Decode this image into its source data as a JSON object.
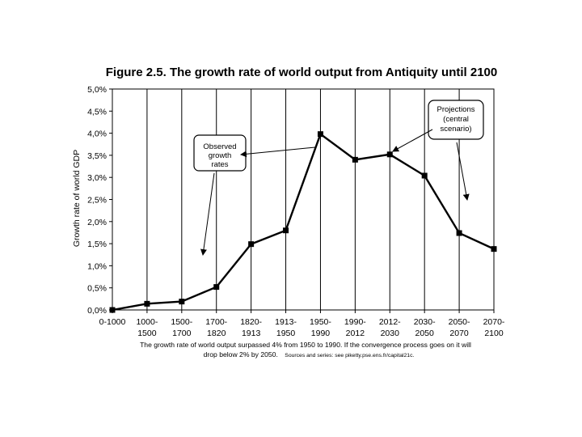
{
  "chart_data": {
    "type": "line",
    "title": "Figure 2.5. The growth rate of world output from Antiquity until 2100",
    "xlabel": "",
    "ylabel": "Growth rate of world GDP",
    "ylim": [
      0,
      5
    ],
    "y_ticks": [
      "0,0%",
      "0,5%",
      "1,0%",
      "1,5%",
      "2,0%",
      "2,5%",
      "3,0%",
      "3,5%",
      "4,0%",
      "4,5%",
      "5,0%"
    ],
    "categories": [
      [
        "0-1000"
      ],
      [
        "1000-",
        "1500"
      ],
      [
        "1500-",
        "1700"
      ],
      [
        "1700-",
        "1820"
      ],
      [
        "1820-",
        "1913"
      ],
      [
        "1913-",
        "1950"
      ],
      [
        "1950-",
        "1990"
      ],
      [
        "1990-",
        "2012"
      ],
      [
        "2012-",
        "2030"
      ],
      [
        "2030-",
        "2050"
      ],
      [
        "2050-",
        "2070"
      ],
      [
        "2070-",
        "2100"
      ]
    ],
    "values": [
      0.0,
      0.14,
      0.19,
      0.52,
      1.49,
      1.8,
      3.98,
      3.4,
      3.52,
      3.04,
      1.74,
      1.38
    ],
    "grid": "vertical",
    "annotations": [
      {
        "name": "observed",
        "lines": [
          "Observed",
          "growth",
          "rates"
        ]
      },
      {
        "name": "projections",
        "lines": [
          "Projections",
          "(central",
          "scenario)"
        ]
      }
    ],
    "footnote": {
      "line1": "The growth rate of world output surpassed 4% from 1950 to 1990. If the convergence process goes on it will",
      "line2": "drop below 2% by 2050.",
      "source": "Sources and series: see piketty.pse.ens.fr/capital21c."
    }
  }
}
